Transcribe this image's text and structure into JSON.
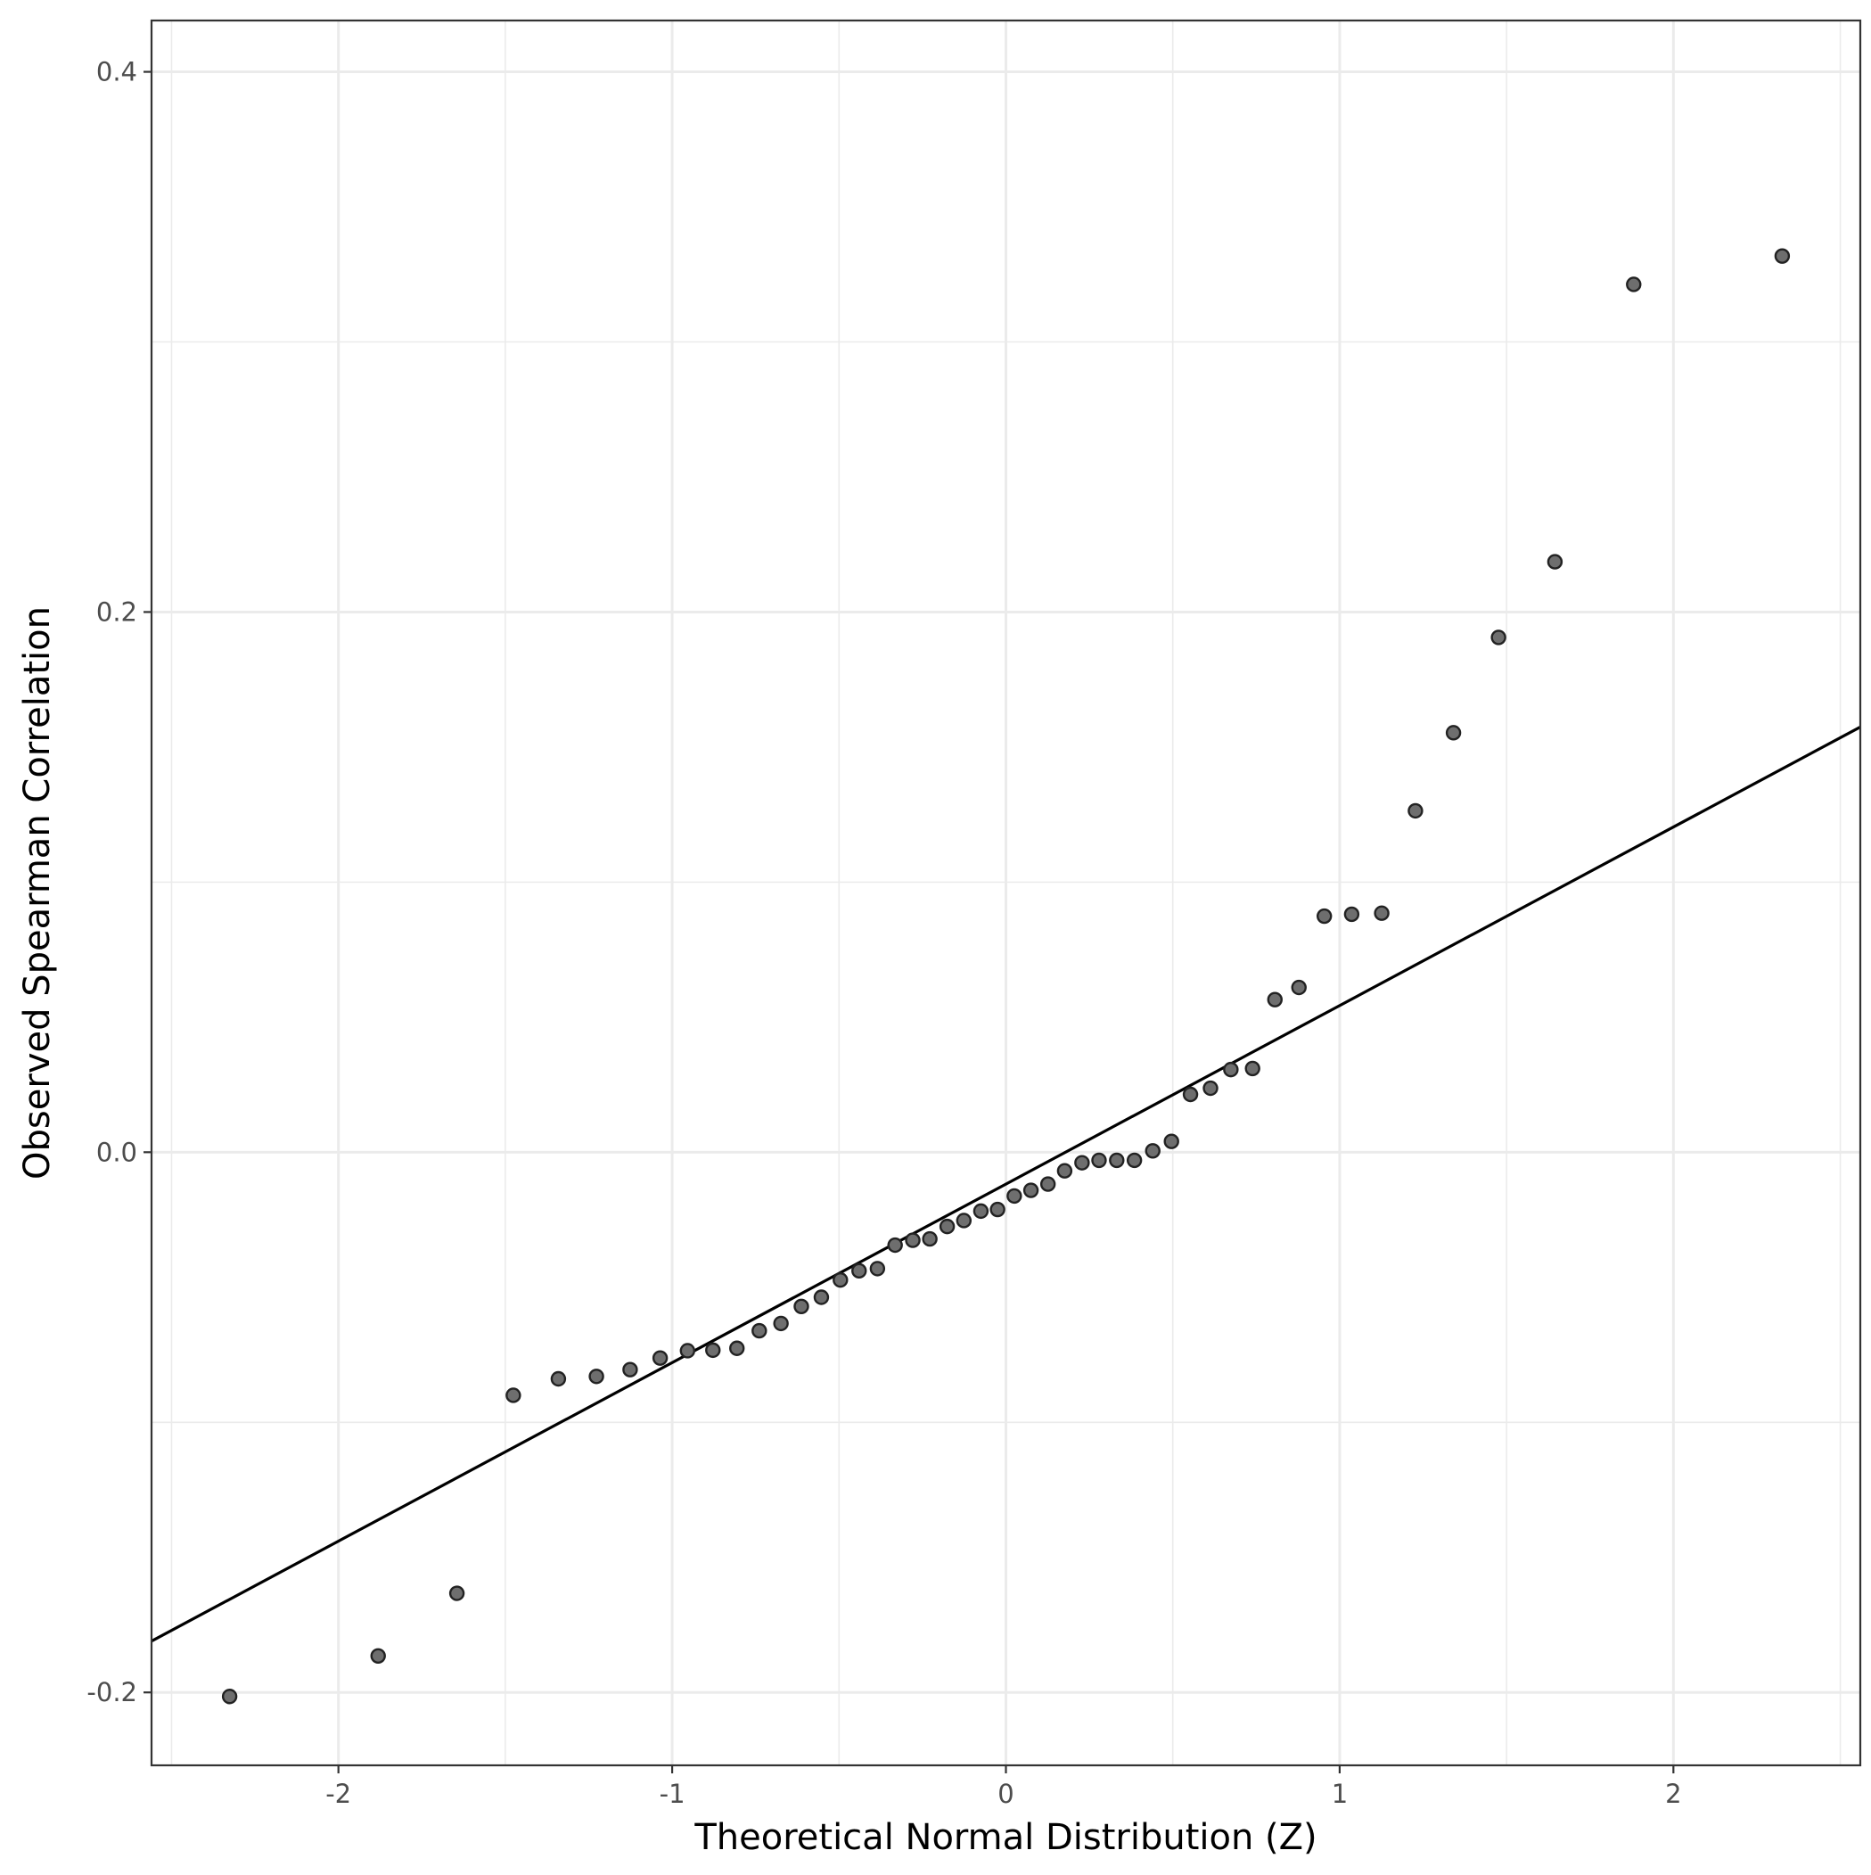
{
  "chart_data": {
    "type": "scatter",
    "subtype": "qq-plot",
    "title": "",
    "xlabel": "Theoretical Normal Distribution (Z)",
    "ylabel": "Observed Spearman Correlation",
    "xlim": [
      -2.56,
      2.56
    ],
    "ylim": [
      -0.227,
      0.419
    ],
    "x_ticks": [
      {
        "value": -2,
        "label": "-2"
      },
      {
        "value": -1,
        "label": "-1"
      },
      {
        "value": 0,
        "label": "0"
      },
      {
        "value": 1,
        "label": "1"
      },
      {
        "value": 2,
        "label": "2"
      }
    ],
    "y_ticks": [
      {
        "value": -0.2,
        "label": "-0.2"
      },
      {
        "value": 0.0,
        "label": "0.0"
      },
      {
        "value": 0.2,
        "label": "0.2"
      },
      {
        "value": 0.4,
        "label": "0.4"
      }
    ],
    "x_minor_ticks": [
      -2.5,
      -1.5,
      -0.5,
      0.5,
      1.5,
      2.5
    ],
    "y_minor_ticks": [
      -0.1,
      0.1,
      0.3
    ],
    "grid": true,
    "legend": "none",
    "point_color": "#6e6e6e",
    "line_color": "#000000",
    "reference_line": {
      "intercept": -0.0118,
      "slope": 0.0661
    },
    "points": [
      {
        "x": -2.326,
        "y": -0.2015
      },
      {
        "x": -1.881,
        "y": -0.1865
      },
      {
        "x": -1.645,
        "y": -0.1633
      },
      {
        "x": -1.476,
        "y": -0.09
      },
      {
        "x": -1.341,
        "y": -0.0839
      },
      {
        "x": -1.227,
        "y": -0.083
      },
      {
        "x": -1.126,
        "y": -0.0805
      },
      {
        "x": -1.036,
        "y": -0.0762
      },
      {
        "x": -0.954,
        "y": -0.0735
      },
      {
        "x": -0.878,
        "y": -0.0733
      },
      {
        "x": -0.806,
        "y": -0.0726
      },
      {
        "x": -0.739,
        "y": -0.0661
      },
      {
        "x": -0.674,
        "y": -0.0634
      },
      {
        "x": -0.613,
        "y": -0.0571
      },
      {
        "x": -0.553,
        "y": -0.0537
      },
      {
        "x": -0.496,
        "y": -0.0473
      },
      {
        "x": -0.44,
        "y": -0.0439
      },
      {
        "x": -0.385,
        "y": -0.0431
      },
      {
        "x": -0.332,
        "y": -0.0344
      },
      {
        "x": -0.279,
        "y": -0.0326
      },
      {
        "x": -0.228,
        "y": -0.0321
      },
      {
        "x": -0.176,
        "y": -0.0275
      },
      {
        "x": -0.126,
        "y": -0.0253
      },
      {
        "x": -0.075,
        "y": -0.0218
      },
      {
        "x": -0.025,
        "y": -0.0212
      },
      {
        "x": 0.025,
        "y": -0.0162
      },
      {
        "x": 0.075,
        "y": -0.0141
      },
      {
        "x": 0.126,
        "y": -0.0118
      },
      {
        "x": 0.176,
        "y": -0.0069
      },
      {
        "x": 0.228,
        "y": -0.0039
      },
      {
        "x": 0.279,
        "y": -0.003
      },
      {
        "x": 0.332,
        "y": -0.003
      },
      {
        "x": 0.385,
        "y": -0.003
      },
      {
        "x": 0.44,
        "y": 0.0005
      },
      {
        "x": 0.496,
        "y": 0.004
      },
      {
        "x": 0.553,
        "y": 0.0214
      },
      {
        "x": 0.613,
        "y": 0.0237
      },
      {
        "x": 0.674,
        "y": 0.0306
      },
      {
        "x": 0.739,
        "y": 0.031
      },
      {
        "x": 0.806,
        "y": 0.0565
      },
      {
        "x": 0.878,
        "y": 0.061
      },
      {
        "x": 0.954,
        "y": 0.0874
      },
      {
        "x": 1.036,
        "y": 0.0881
      },
      {
        "x": 1.126,
        "y": 0.0885
      },
      {
        "x": 1.227,
        "y": 0.1264
      },
      {
        "x": 1.341,
        "y": 0.1553
      },
      {
        "x": 1.476,
        "y": 0.1906
      },
      {
        "x": 1.645,
        "y": 0.2186
      },
      {
        "x": 1.881,
        "y": 0.3213
      },
      {
        "x": 2.326,
        "y": 0.3318
      }
    ]
  }
}
